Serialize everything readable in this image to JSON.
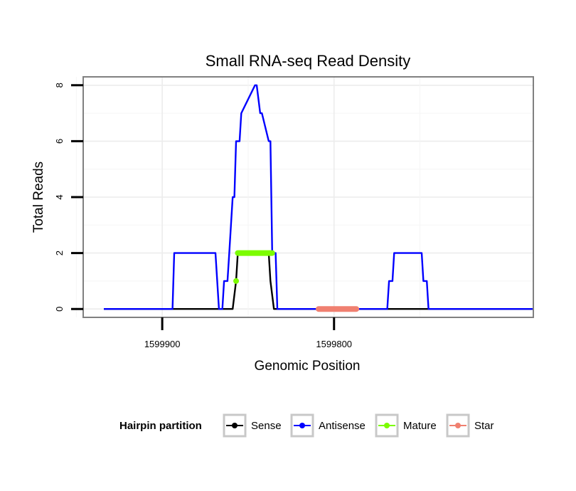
{
  "chart_data": {
    "type": "line",
    "title": "Small RNA-seq Read Density",
    "xlabel": "Genomic Position",
    "ylabel": "Total Reads",
    "x_reversed": true,
    "xlim": [
      1599946,
      1599684
    ],
    "ylim": [
      -0.3,
      8.3
    ],
    "x_ticks": [
      1599900,
      1599800
    ],
    "x_tick_labels": [
      "1599900",
      "1599800"
    ],
    "y_ticks": [
      0,
      2,
      4,
      6,
      8
    ],
    "y_tick_labels": [
      "0",
      "2",
      "4",
      "6",
      "8"
    ],
    "grid": true,
    "legend": {
      "title": "Hairpin partition",
      "position": "bottom",
      "entries": [
        "Sense",
        "Antisense",
        "Mature",
        "Star"
      ]
    },
    "series": [
      {
        "name": "Sense",
        "color": "#000000",
        "x": [
          1599934,
          1599859,
          1599857,
          1599856,
          1599838,
          1599837,
          1599835,
          1599684
        ],
        "y": [
          0,
          0,
          1,
          2,
          2,
          1,
          0,
          0
        ]
      },
      {
        "name": "Antisense",
        "color": "#0000ff",
        "x": [
          1599934,
          1599894,
          1599893,
          1599869,
          1599867,
          1599865,
          1599864,
          1599862,
          1599861,
          1599859,
          1599858,
          1599857,
          1599855,
          1599854,
          1599846,
          1599845,
          1599843,
          1599842,
          1599838,
          1599837,
          1599836,
          1599834,
          1599833,
          1599769,
          1599768,
          1599766,
          1599765,
          1599749,
          1599748,
          1599746,
          1599745,
          1599684
        ],
        "y": [
          0,
          0,
          2,
          2,
          0,
          0,
          1,
          1,
          2,
          4,
          4,
          6,
          6,
          7,
          8,
          8,
          7,
          7,
          6,
          6,
          2,
          2,
          0,
          0,
          1,
          1,
          2,
          2,
          1,
          1,
          0,
          0
        ]
      },
      {
        "name": "Mature",
        "color": "#7cfc00",
        "x": [
          1599856,
          1599836
        ],
        "y": [
          2,
          2
        ],
        "extra_points": [
          {
            "x": 1599857,
            "y": 1
          }
        ]
      },
      {
        "name": "Star",
        "color": "#f08070",
        "x": [
          1599809,
          1599787
        ],
        "y": [
          0,
          0
        ]
      }
    ]
  }
}
